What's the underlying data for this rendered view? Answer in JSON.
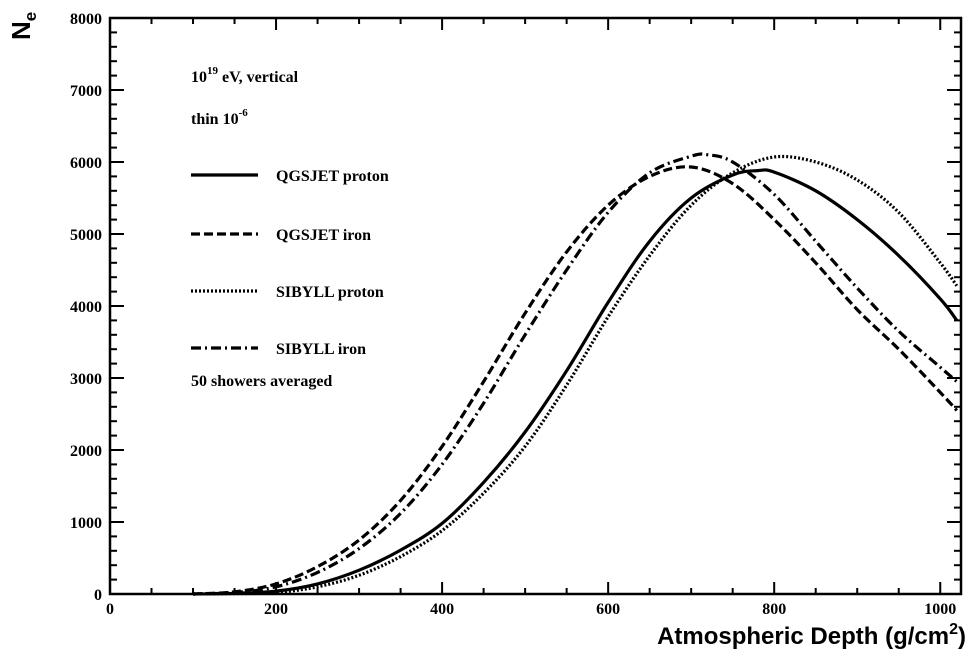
{
  "chart_data": {
    "type": "line",
    "xlabel": "Atmospheric Depth (g/cm",
    "xlabel_sup": "2",
    "xlabel_close": ")",
    "ylabel": "N",
    "ylabel_sub": "e",
    "xlim": [
      0,
      1025
    ],
    "ylim": [
      0,
      8000
    ],
    "x_ticks": [
      0,
      200,
      400,
      600,
      800,
      1000
    ],
    "x_tick_labels": [
      "0",
      "200",
      "400",
      "600",
      "800",
      "1000"
    ],
    "y_ticks": [
      0,
      1000,
      2000,
      3000,
      4000,
      5000,
      6000,
      7000,
      8000
    ],
    "y_tick_labels": [
      "0",
      "1000",
      "2000",
      "3000",
      "4000",
      "5000",
      "6000",
      "7000",
      "8000"
    ],
    "grid": false,
    "legend_position": "top-left",
    "annotations": {
      "energy_base": "10",
      "energy_exp": "19",
      "energy_rest": " eV, vertical",
      "thin_base": "thin 10",
      "thin_exp": "-6",
      "showers": "50 showers averaged"
    },
    "series": [
      {
        "name": "QGSJET proton",
        "style": "solid",
        "x": [
          100,
          150,
          200,
          250,
          300,
          350,
          400,
          450,
          500,
          550,
          600,
          650,
          700,
          750,
          780,
          800,
          850,
          900,
          950,
          1000,
          1020
        ],
        "y": [
          0,
          10,
          40,
          140,
          330,
          610,
          980,
          1550,
          2250,
          3100,
          4050,
          4900,
          5500,
          5820,
          5880,
          5860,
          5600,
          5200,
          4700,
          4100,
          3800
        ]
      },
      {
        "name": "QGSJET iron",
        "style": "dashed",
        "x": [
          100,
          150,
          200,
          250,
          300,
          350,
          400,
          450,
          500,
          550,
          600,
          650,
          700,
          750,
          800,
          850,
          900,
          950,
          1000,
          1020
        ],
        "y": [
          0,
          30,
          140,
          380,
          750,
          1300,
          2050,
          2950,
          3900,
          4750,
          5400,
          5800,
          5930,
          5700,
          5200,
          4600,
          3950,
          3400,
          2800,
          2550
        ]
      },
      {
        "name": "SIBYLL proton",
        "style": "dotted",
        "x": [
          100,
          150,
          200,
          250,
          300,
          350,
          400,
          450,
          500,
          550,
          600,
          650,
          700,
          750,
          800,
          850,
          900,
          950,
          1000,
          1020
        ],
        "y": [
          0,
          5,
          20,
          100,
          260,
          520,
          880,
          1400,
          2050,
          2900,
          3850,
          4700,
          5400,
          5850,
          6070,
          6000,
          5750,
          5300,
          4600,
          4280
        ]
      },
      {
        "name": "SIBYLL iron",
        "style": "dashdot",
        "x": [
          100,
          150,
          200,
          250,
          300,
          350,
          400,
          450,
          500,
          550,
          600,
          650,
          700,
          720,
          750,
          800,
          850,
          900,
          950,
          1000,
          1020
        ],
        "y": [
          0,
          20,
          100,
          300,
          630,
          1120,
          1800,
          2650,
          3600,
          4500,
          5300,
          5850,
          6080,
          6100,
          6000,
          5550,
          4900,
          4250,
          3650,
          3150,
          2950
        ]
      }
    ]
  }
}
